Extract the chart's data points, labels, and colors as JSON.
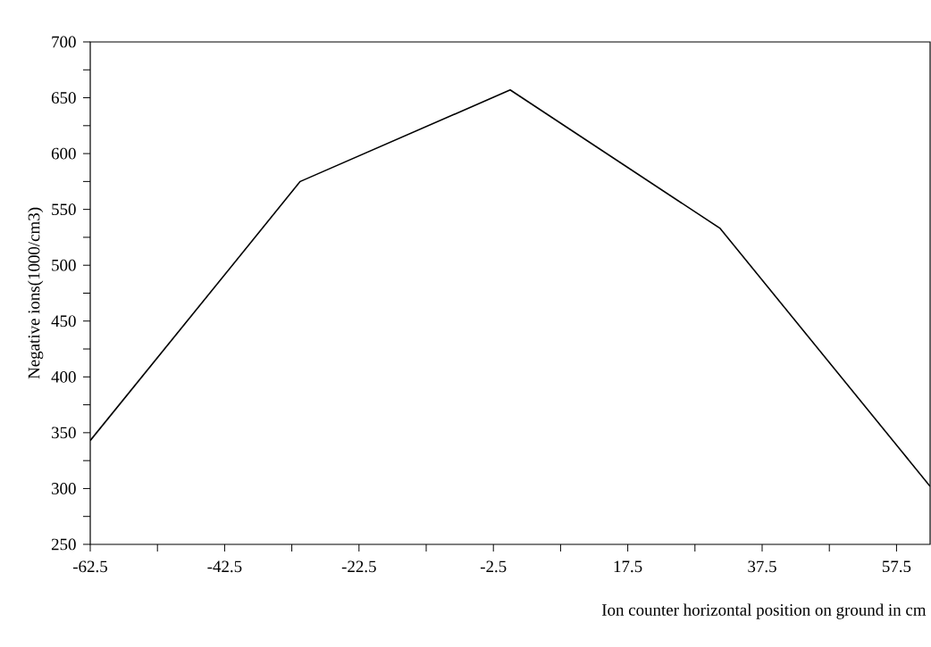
{
  "chart_data": {
    "type": "line",
    "xlabel": "Ion counter horizontal position on ground in cm",
    "ylabel": "Negative ions(1000/cm3)",
    "x": [
      -62.5,
      -31.25,
      0,
      31.25,
      62.5
    ],
    "series": [
      {
        "color": "#000000",
        "values": [
          343,
          575,
          657,
          533,
          302
        ]
      }
    ],
    "xlim": [
      -62.5,
      62.5
    ],
    "ylim": [
      250,
      700
    ],
    "xticks": [
      -62.5,
      {
        "value": -52.5,
        "label": null
      },
      -42.5,
      {
        "value": -32.5,
        "label": null
      },
      -22.5,
      {
        "value": -12.5,
        "label": null
      },
      -2.5,
      {
        "value": 7.5,
        "label": null
      },
      17.5,
      {
        "value": 27.5,
        "label": null
      },
      37.5,
      {
        "value": 47.5,
        "label": null
      },
      57.5
    ],
    "yticks": [
      250,
      {
        "value": 275,
        "label": null
      },
      300,
      {
        "value": 325,
        "label": null
      },
      350,
      {
        "value": 375,
        "label": null
      },
      400,
      {
        "value": 425,
        "label": null
      },
      450,
      {
        "value": 475,
        "label": null
      },
      500,
      {
        "value": 525,
        "label": null
      },
      550,
      {
        "value": 575,
        "label": null
      },
      600,
      {
        "value": 625,
        "label": null
      },
      650,
      {
        "value": 675,
        "label": null
      },
      700
    ],
    "marker": "none",
    "line_style": "solid"
  }
}
